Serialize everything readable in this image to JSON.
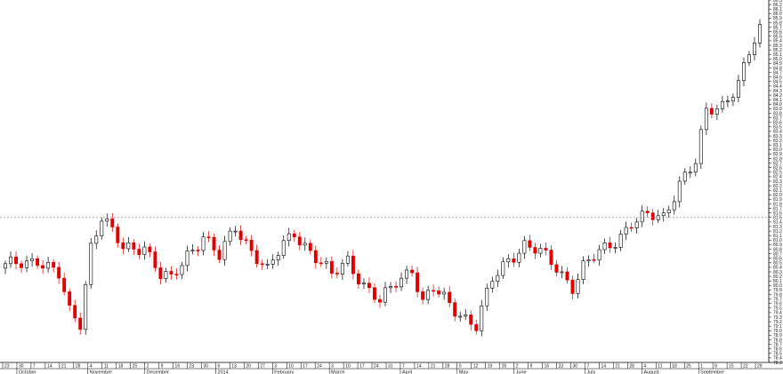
{
  "chart_data": {
    "type": "candlestick",
    "title": "",
    "xlabel": "",
    "ylabel": "",
    "ylim": [
      78.3,
      86.3
    ],
    "y_tick_step": 0.1,
    "grid": false,
    "reference_line": 81.5,
    "colors": {
      "up": "#ffffff",
      "down": "#e00000",
      "outline": "#000000",
      "reference": "#888888"
    },
    "x_day_labels": [
      "23",
      "30",
      "7",
      "14",
      "21",
      "28",
      "4",
      "11",
      "18",
      "25",
      "2",
      "9",
      "16",
      "23",
      "30",
      "6",
      "13",
      "20",
      "27",
      "3",
      "10",
      "17",
      "24",
      "3",
      "10",
      "17",
      "24",
      "31",
      "7",
      "14",
      "21",
      "28",
      "5",
      "12",
      "19",
      "26",
      "2",
      "9",
      "16",
      "23",
      "30",
      "7",
      "14",
      "21",
      "28",
      "4",
      "11",
      "18",
      "25",
      "1",
      "8",
      "15",
      "22",
      "29"
    ],
    "x_month_labels": [
      {
        "label": "October",
        "at": 1
      },
      {
        "label": "November",
        "at": 6
      },
      {
        "label": "December",
        "at": 10
      },
      {
        "label": "2014",
        "at": 15
      },
      {
        "label": "February",
        "at": 19
      },
      {
        "label": "March",
        "at": 23
      },
      {
        "label": "April",
        "at": 28
      },
      {
        "label": "May",
        "at": 32
      },
      {
        "label": "June",
        "at": 36
      },
      {
        "label": "July",
        "at": 41
      },
      {
        "label": "August",
        "at": 45
      },
      {
        "label": "September",
        "at": 49
      }
    ],
    "anchors": [
      [
        0,
        80.4
      ],
      [
        6,
        80.6
      ],
      [
        10,
        80.2
      ],
      [
        12,
        79.4
      ],
      [
        14,
        79.2
      ],
      [
        16,
        80.9
      ],
      [
        18,
        81.5
      ],
      [
        22,
        80.8
      ],
      [
        26,
        80.9
      ],
      [
        29,
        80.2
      ],
      [
        31,
        80.1
      ],
      [
        34,
        80.7
      ],
      [
        37,
        81.1
      ],
      [
        40,
        80.6
      ],
      [
        43,
        81.3
      ],
      [
        46,
        80.8
      ],
      [
        49,
        80.3
      ],
      [
        52,
        80.9
      ],
      [
        54,
        81.2
      ],
      [
        58,
        80.6
      ],
      [
        61,
        80.2
      ],
      [
        64,
        80.6
      ],
      [
        67,
        80.0
      ],
      [
        70,
        79.6
      ],
      [
        73,
        80.1
      ],
      [
        76,
        80.4
      ],
      [
        78,
        79.6
      ],
      [
        80,
        79.9
      ],
      [
        83,
        79.6
      ],
      [
        86,
        79.3
      ],
      [
        88,
        79.1
      ],
      [
        91,
        80.1
      ],
      [
        94,
        80.6
      ],
      [
        97,
        80.9
      ],
      [
        100,
        80.7
      ],
      [
        103,
        80.4
      ],
      [
        106,
        80.0
      ],
      [
        108,
        80.4
      ],
      [
        111,
        80.7
      ],
      [
        114,
        81.0
      ],
      [
        117,
        81.4
      ],
      [
        120,
        81.5
      ],
      [
        123,
        81.5
      ],
      [
        126,
        82.3
      ],
      [
        129,
        82.7
      ],
      [
        131,
        83.8
      ],
      [
        134,
        84.0
      ],
      [
        137,
        84.5
      ],
      [
        139,
        85.1
      ],
      [
        141,
        85.6
      ]
    ]
  }
}
